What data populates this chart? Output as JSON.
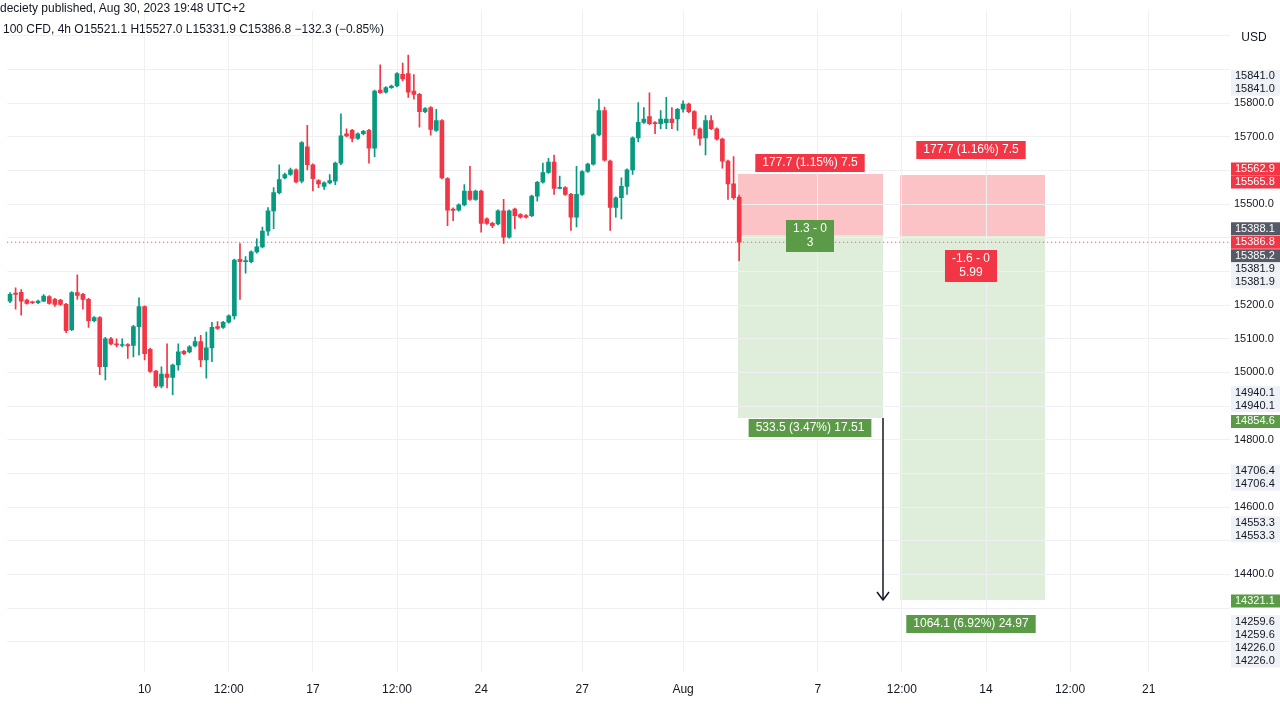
{
  "chart_data": {
    "type": "candlestick",
    "title": "deciety published, Aug 30, 2023 19:48 UTC+2",
    "subtitle": "100 CFD, 4h  O15521.1  H15527.0  L15331.9  C15386.8  −132.3 (−0.85%)",
    "categories": [
      null,
      null,
      null,
      null,
      null,
      null,
      null,
      null,
      null,
      null,
      null,
      null,
      null,
      null,
      null,
      null,
      null,
      null,
      null,
      null,
      null,
      null,
      null,
      null,
      "10",
      null,
      null,
      null,
      null,
      null,
      null,
      null,
      null,
      null,
      null,
      null,
      null,
      null,
      null,
      "12:00",
      null,
      null,
      null,
      null,
      null,
      null,
      null,
      null,
      null,
      null,
      null,
      null,
      null,
      null,
      "17",
      null,
      null,
      null,
      null,
      null,
      null,
      null,
      null,
      null,
      null,
      null,
      null,
      null,
      null,
      "12:00",
      null,
      null,
      null,
      null,
      null,
      null,
      null,
      null,
      null,
      null,
      null,
      null,
      null,
      null,
      "24",
      null,
      null,
      null,
      null,
      null,
      null,
      null,
      null,
      null,
      null,
      null,
      null,
      null,
      null,
      null,
      null,
      null,
      "27",
      null,
      null,
      null,
      null,
      null,
      null,
      null,
      null,
      null,
      null,
      null,
      null,
      null,
      null,
      null,
      null,
      null,
      "Aug",
      null,
      null,
      null,
      null,
      null,
      null,
      null,
      null,
      null,
      null,
      null,
      null,
      null,
      null,
      null,
      null,
      null,
      null,
      null,
      null,
      null,
      null,
      null,
      "7",
      null,
      null,
      null,
      null,
      null,
      null,
      null,
      null,
      null,
      null,
      null,
      null,
      null,
      null,
      "12:00",
      null,
      null,
      null,
      null,
      null,
      null,
      null,
      null,
      null,
      null,
      null,
      null,
      null,
      null,
      "14",
      null,
      null,
      null,
      null,
      null,
      null,
      null,
      null,
      null,
      null,
      null,
      null,
      null,
      null,
      "12:00",
      null,
      null,
      null,
      null,
      null,
      null,
      null,
      null,
      null,
      null,
      null,
      null,
      null,
      "21",
      null,
      null,
      null,
      null,
      null,
      null,
      null,
      null,
      null,
      null,
      null,
      null,
      null,
      null
    ],
    "ohlc": [
      [
        15212,
        15237,
        15207,
        15232
      ],
      [
        15236,
        15251,
        15188,
        15232
      ],
      [
        15238,
        15246,
        15170,
        15212
      ],
      [
        15215,
        15218,
        15203,
        15205
      ],
      [
        15209,
        15212,
        15204,
        15207
      ],
      [
        15207,
        15215,
        15204,
        15212
      ],
      [
        15212,
        15231,
        15210,
        15227
      ],
      [
        15225,
        15228,
        15203,
        15205
      ],
      [
        15217,
        15220,
        15196,
        15202
      ],
      [
        15215,
        15217,
        15199,
        15202
      ],
      [
        15202,
        15205,
        15118,
        15124
      ],
      [
        15127,
        15240,
        15124,
        15237
      ],
      [
        15237,
        15290,
        15217,
        15229
      ],
      [
        15232,
        15235,
        15188,
        15217
      ],
      [
        15217,
        15220,
        15134,
        15154
      ],
      [
        15154,
        15166,
        15150,
        15163
      ],
      [
        15163,
        15166,
        14993,
        15017
      ],
      [
        15017,
        15104,
        14978,
        15100
      ],
      [
        15100,
        15104,
        15082,
        15085
      ],
      [
        15085,
        15100,
        15076,
        15082
      ],
      [
        15080,
        15100,
        15076,
        15082
      ],
      [
        15083,
        15086,
        15042,
        15079
      ],
      [
        15080,
        15140,
        15046,
        15136
      ],
      [
        15136,
        15222,
        15051,
        15196
      ],
      [
        15196,
        15198,
        15037,
        15056
      ],
      [
        15069,
        15072,
        15000,
        15003
      ],
      [
        15004,
        15006,
        14955,
        14959
      ],
      [
        14959,
        15017,
        14954,
        14995
      ],
      [
        14995,
        15085,
        14954,
        14985
      ],
      [
        14985,
        15025,
        14934,
        15022
      ],
      [
        15022,
        15085,
        15007,
        15061
      ],
      [
        15063,
        15066,
        15053,
        15056
      ],
      [
        15061,
        15080,
        15058,
        15076
      ],
      [
        15079,
        15105,
        15076,
        15092
      ],
      [
        15092,
        15110,
        15017,
        15037
      ],
      [
        15037,
        15120,
        14983,
        15073
      ],
      [
        15073,
        15149,
        15032,
        15134
      ],
      [
        15136,
        15151,
        15128,
        15131
      ],
      [
        15134,
        15152,
        15131,
        15149
      ],
      [
        15149,
        15171,
        15146,
        15168
      ],
      [
        15168,
        15337,
        15158,
        15334
      ],
      [
        15336,
        15383,
        15217,
        15329
      ],
      [
        15329,
        15344,
        15295,
        15331
      ],
      [
        15329,
        15361,
        15325,
        15358
      ],
      [
        15358,
        15397,
        15354,
        15373
      ],
      [
        15373,
        15432,
        15370,
        15420
      ],
      [
        15420,
        15490,
        15407,
        15480
      ],
      [
        15480,
        15549,
        15427,
        15534
      ],
      [
        15534,
        15617,
        15530,
        15573
      ],
      [
        15578,
        15592,
        15575,
        15588
      ],
      [
        15588,
        15607,
        15585,
        15602
      ],
      [
        15602,
        15605,
        15563,
        15566
      ],
      [
        15568,
        15686,
        15563,
        15683
      ],
      [
        15670,
        15734,
        15602,
        15617
      ],
      [
        15617,
        15620,
        15539,
        15576
      ],
      [
        15570,
        15573,
        15549,
        15560
      ],
      [
        15553,
        15566,
        15544,
        15563
      ],
      [
        15563,
        15588,
        15560,
        15570
      ],
      [
        15568,
        15625,
        15558,
        15622
      ],
      [
        15622,
        15768,
        15617,
        15703
      ],
      [
        15709,
        15724,
        15700,
        15703
      ],
      [
        15719,
        15722,
        15685,
        15695
      ],
      [
        15695,
        15712,
        15692,
        15709
      ],
      [
        15709,
        15719,
        15706,
        15716
      ],
      [
        15719,
        15722,
        15622,
        15666
      ],
      [
        15666,
        15839,
        15641,
        15836
      ],
      [
        15839,
        15914,
        15829,
        15831
      ],
      [
        15833,
        15849,
        15830,
        15846
      ],
      [
        15846,
        15854,
        15844,
        15851
      ],
      [
        15851,
        15891,
        15848,
        15888
      ],
      [
        15886,
        15919,
        15866,
        15872
      ],
      [
        15888,
        15943,
        15817,
        15833
      ],
      [
        15836,
        15885,
        15812,
        15826
      ],
      [
        15826,
        15829,
        15729,
        15775
      ],
      [
        15775,
        15787,
        15772,
        15784
      ],
      [
        15787,
        15790,
        15705,
        15722
      ],
      [
        15719,
        15782,
        15716,
        15748
      ],
      [
        15748,
        15751,
        15575,
        15578
      ],
      [
        15576,
        15579,
        15436,
        15482
      ],
      [
        15485,
        15489,
        15451,
        15481
      ],
      [
        15482,
        15501,
        15479,
        15498
      ],
      [
        15498,
        15558,
        15495,
        15539
      ],
      [
        15539,
        15612,
        15511,
        15514
      ],
      [
        15514,
        15542,
        15511,
        15539
      ],
      [
        15539,
        15542,
        15417,
        15443
      ],
      [
        15456,
        15459,
        15440,
        15443
      ],
      [
        15443,
        15446,
        15430,
        15436
      ],
      [
        15441,
        15483,
        15438,
        15480
      ],
      [
        15480,
        15514,
        15383,
        15402
      ],
      [
        15402,
        15483,
        15399,
        15480
      ],
      [
        15485,
        15488,
        15427,
        15466
      ],
      [
        15469,
        15472,
        15458,
        15461
      ],
      [
        15466,
        15469,
        15458,
        15461
      ],
      [
        15466,
        15527,
        15463,
        15524
      ],
      [
        15524,
        15568,
        15509,
        15565
      ],
      [
        15565,
        15622,
        15562,
        15594
      ],
      [
        15594,
        15636,
        15591,
        15625
      ],
      [
        15625,
        15646,
        15529,
        15547
      ],
      [
        15547,
        15583,
        15545,
        15550
      ],
      [
        15549,
        15552,
        15526,
        15529
      ],
      [
        15529,
        15532,
        15422,
        15461
      ],
      [
        15461,
        15612,
        15432,
        15529
      ],
      [
        15529,
        15600,
        15526,
        15597
      ],
      [
        15597,
        15622,
        15594,
        15619
      ],
      [
        15619,
        15709,
        15616,
        15706
      ],
      [
        15706,
        15812,
        15703,
        15778
      ],
      [
        15778,
        15788,
        15628,
        15631
      ],
      [
        15628,
        15631,
        15422,
        15490
      ],
      [
        15490,
        15522,
        15461,
        15519
      ],
      [
        15519,
        15578,
        15456,
        15553
      ],
      [
        15553,
        15605,
        15529,
        15602
      ],
      [
        15602,
        15700,
        15588,
        15697
      ],
      [
        15697,
        15802,
        15685,
        15743
      ],
      [
        15743,
        15787,
        15740,
        15753
      ],
      [
        15760,
        15831,
        15736,
        15739
      ],
      [
        15742,
        15745,
        15709,
        15739
      ],
      [
        15739,
        15778,
        15724,
        15753
      ],
      [
        15742,
        15817,
        15724,
        15753
      ],
      [
        15753,
        15787,
        15724,
        15742
      ],
      [
        15753,
        15785,
        15719,
        15782
      ],
      [
        15782,
        15807,
        15773,
        15797
      ],
      [
        15797,
        15800,
        15772,
        15775
      ],
      [
        15775,
        15778,
        15705,
        15724
      ],
      [
        15724,
        15727,
        15675,
        15695
      ],
      [
        15697,
        15763,
        15646,
        15748
      ],
      [
        15748,
        15763,
        15721,
        15724
      ],
      [
        15724,
        15727,
        15690,
        15693
      ],
      [
        15693,
        15696,
        15607,
        15628
      ],
      [
        15628,
        15631,
        15514,
        15560
      ],
      [
        15560,
        15641,
        15514,
        15519
      ],
      [
        15521.1,
        15527.0,
        15331.9,
        15386.8
      ],
      null,
      null,
      null,
      null,
      null,
      null,
      null,
      null,
      null,
      null,
      null,
      null,
      null,
      null,
      null,
      null,
      null,
      null,
      null,
      null,
      null,
      null,
      null,
      null,
      null,
      null,
      null,
      null,
      null,
      null,
      null,
      null,
      null,
      null,
      null,
      null,
      null,
      null,
      null,
      null,
      null,
      null,
      null,
      null,
      null,
      null,
      null,
      null,
      null,
      null,
      null,
      null,
      null,
      null,
      null,
      null,
      null,
      null,
      null,
      null,
      null,
      null,
      null,
      null,
      null,
      null,
      null,
      null,
      null,
      null,
      null,
      null,
      null,
      null,
      null,
      null,
      null,
      null,
      null,
      null,
      null,
      null,
      null,
      null,
      null,
      null,
      null
    ],
    "ylim": [
      14110,
      16075
    ],
    "yticks": [
      {
        "value": 16000,
        "label": null
      },
      {
        "value": 15900,
        "label": null
      },
      {
        "value": 15800,
        "label": "15800.0"
      },
      {
        "value": 15700,
        "label": "15700.0"
      },
      {
        "value": 15600,
        "label": null
      },
      {
        "value": 15500,
        "label": "15500.0"
      },
      {
        "value": 15400,
        "label": null
      },
      {
        "value": 15300,
        "label": null
      },
      {
        "value": 15200,
        "label": "15200.0"
      },
      {
        "value": 15100,
        "label": "15100.0"
      },
      {
        "value": 15000,
        "label": "15000.0"
      },
      {
        "value": 14900,
        "label": null
      },
      {
        "value": 14800,
        "label": "14800.0"
      },
      {
        "value": 14700,
        "label": null
      },
      {
        "value": 14600,
        "label": "14600.0"
      },
      {
        "value": 14500,
        "label": null
      },
      {
        "value": 14400,
        "label": "14400.0"
      },
      {
        "value": 14300,
        "label": null
      },
      {
        "value": 14200,
        "label": null
      }
    ],
    "grid": true,
    "ref_lines": [
      {
        "axis": "y",
        "value": 15386.8,
        "label": "15386.8",
        "color": "#f23645",
        "line_style": "dotted"
      }
    ],
    "annotations": [
      "USD",
      "177.7 (1.15%) 7.5",
      "1.3 - 0\n3",
      "533.5 (3.47%) 17.51",
      "177.7 (1.16%) 7.5",
      "-1.6 - 0\n5.99",
      "1064.1 (6.92%) 24.97",
      "15841.0",
      "15841.0",
      "15565.8",
      "15562.9",
      "15388.1",
      "15385.2",
      "15381.9",
      "15381.9",
      "14940.1",
      "14940.1",
      "14854.6",
      "14706.4",
      "14706.4",
      "14553.3",
      "14553.3",
      "14321.1",
      "14259.6",
      "14259.6",
      "14226.0",
      "14226.0"
    ]
  }
}
